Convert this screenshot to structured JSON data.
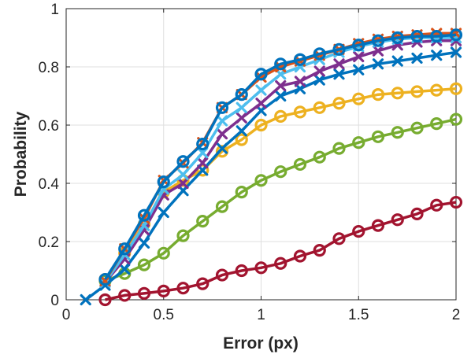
{
  "chart_data": {
    "type": "line",
    "title": "",
    "xlabel": "Error (px)",
    "ylabel": "Probability",
    "xlim": [
      0,
      2
    ],
    "ylim": [
      0,
      1
    ],
    "xticks": [
      0,
      0.5,
      1,
      1.5,
      2
    ],
    "xtick_labels": [
      "0",
      "0.5",
      "1",
      "1.5",
      "2"
    ],
    "yticks": [
      0,
      0.2,
      0.4,
      0.6,
      0.8,
      1
    ],
    "ytick_labels": [
      "0",
      "0.2",
      "0.4",
      "0.6",
      "0.8",
      "1"
    ],
    "grid": true,
    "legend": "none",
    "series": [
      {
        "color": "#A2142F",
        "marker": "circle",
        "x": [
          0.2,
          0.3,
          0.4,
          0.5,
          0.6,
          0.7,
          0.8,
          0.9,
          1.0,
          1.1,
          1.2,
          1.3,
          1.4,
          1.5,
          1.6,
          1.7,
          1.8,
          1.9,
          2.0
        ],
        "values": [
          0.0,
          0.015,
          0.022,
          0.03,
          0.04,
          0.055,
          0.085,
          0.1,
          0.11,
          0.125,
          0.15,
          0.17,
          0.21,
          0.235,
          0.255,
          0.275,
          0.295,
          0.325,
          0.335
        ]
      },
      {
        "color": "#77AC30",
        "marker": "circle",
        "x": [
          0.2,
          0.3,
          0.4,
          0.5,
          0.6,
          0.7,
          0.8,
          0.9,
          1.0,
          1.1,
          1.2,
          1.3,
          1.4,
          1.5,
          1.6,
          1.7,
          1.8,
          1.9,
          2.0
        ],
        "values": [
          0.065,
          0.09,
          0.12,
          0.16,
          0.22,
          0.27,
          0.32,
          0.37,
          0.41,
          0.44,
          0.465,
          0.49,
          0.52,
          0.54,
          0.56,
          0.575,
          0.59,
          0.605,
          0.62
        ]
      },
      {
        "color": "#EDB120",
        "marker": "circle",
        "x": [
          0.2,
          0.3,
          0.4,
          0.5,
          0.6,
          0.7,
          0.8,
          0.9,
          1.0,
          1.1,
          1.2,
          1.3,
          1.4,
          1.5,
          1.6,
          1.7,
          1.8,
          1.9,
          2.0
        ],
        "values": [
          0.07,
          0.16,
          0.26,
          0.37,
          0.41,
          0.445,
          0.51,
          0.55,
          0.6,
          0.63,
          0.645,
          0.66,
          0.675,
          0.69,
          0.705,
          0.71,
          0.715,
          0.72,
          0.725
        ]
      },
      {
        "color": "#0072BD",
        "marker": "cross",
        "x": [
          0.1,
          0.2,
          0.3,
          0.4,
          0.5,
          0.6,
          0.7,
          0.8,
          0.9,
          1.0,
          1.1,
          1.2,
          1.3,
          1.4,
          1.5,
          1.6,
          1.7,
          1.8,
          1.9,
          2.0
        ],
        "values": [
          0.0,
          0.05,
          0.105,
          0.195,
          0.3,
          0.375,
          0.445,
          0.52,
          0.58,
          0.65,
          0.7,
          0.725,
          0.755,
          0.775,
          0.79,
          0.81,
          0.82,
          0.83,
          0.84,
          0.85
        ]
      },
      {
        "color": "#7E2F8E",
        "marker": "cross",
        "x": [
          0.2,
          0.3,
          0.4,
          0.5,
          0.6,
          0.7,
          0.8,
          0.9,
          1.0,
          1.1,
          1.2,
          1.3,
          1.4,
          1.5,
          1.6,
          1.7,
          1.8,
          1.9,
          2.0
        ],
        "values": [
          0.06,
          0.14,
          0.24,
          0.36,
          0.4,
          0.47,
          0.57,
          0.625,
          0.675,
          0.735,
          0.75,
          0.785,
          0.81,
          0.835,
          0.855,
          0.875,
          0.885,
          0.89,
          0.89
        ]
      },
      {
        "color": "#4DBEEE",
        "marker": "cross",
        "x": [
          0.2,
          0.3,
          0.4,
          0.5,
          0.6,
          0.7,
          0.8,
          0.9,
          1.0,
          1.1,
          1.2,
          1.3,
          1.4,
          1.5,
          1.6,
          1.7,
          1.8,
          1.9,
          2.0
        ],
        "values": [
          0.06,
          0.155,
          0.255,
          0.38,
          0.43,
          0.505,
          0.615,
          0.66,
          0.72,
          0.775,
          0.8,
          0.825,
          0.85,
          0.87,
          0.885,
          0.895,
          0.9,
          0.9,
          0.9
        ]
      },
      {
        "color": "#D95319",
        "marker": "cross",
        "x": [
          0.2,
          0.3,
          0.4,
          0.5,
          0.6,
          0.7,
          0.8,
          0.9,
          1.0,
          1.1,
          1.2,
          1.3,
          1.4,
          1.5,
          1.6,
          1.7,
          1.8,
          1.9,
          2.0
        ],
        "values": [
          0.065,
          0.175,
          0.28,
          0.41,
          0.47,
          0.54,
          0.66,
          0.705,
          0.765,
          0.8,
          0.82,
          0.84,
          0.86,
          0.88,
          0.895,
          0.905,
          0.91,
          0.915,
          0.915
        ]
      },
      {
        "color": "#0072BD",
        "marker": "circle",
        "x": [
          0.2,
          0.3,
          0.4,
          0.5,
          0.6,
          0.7,
          0.8,
          0.9,
          1.0,
          1.1,
          1.2,
          1.3,
          1.4,
          1.5,
          1.6,
          1.7,
          1.8,
          1.9,
          2.0
        ],
        "values": [
          0.07,
          0.175,
          0.29,
          0.405,
          0.475,
          0.535,
          0.66,
          0.705,
          0.775,
          0.81,
          0.825,
          0.845,
          0.86,
          0.875,
          0.89,
          0.9,
          0.905,
          0.905,
          0.91
        ]
      }
    ]
  }
}
